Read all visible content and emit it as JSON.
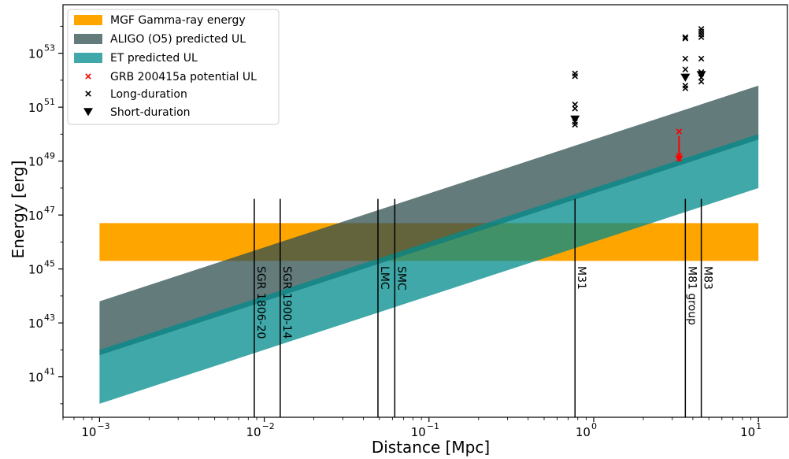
{
  "chart_data": {
    "type": "area",
    "title": "",
    "xlabel": "Distance [Mpc]",
    "ylabel": "Energy [erg]",
    "xscale": "log",
    "yscale": "log",
    "xlim": [
      0.0006,
      15
    ],
    "ylim_log10": [
      39.5,
      54.8
    ],
    "xticks": [
      {
        "value": 0.001,
        "base": "10",
        "exp": "−3"
      },
      {
        "value": 0.01,
        "base": "10",
        "exp": "−2"
      },
      {
        "value": 0.1,
        "base": "10",
        "exp": "−1"
      },
      {
        "value": 1,
        "base": "10",
        "exp": "0"
      },
      {
        "value": 10,
        "base": "10",
        "exp": "1"
      }
    ],
    "yticks": [
      {
        "log10": 41,
        "base": "10",
        "exp": "41"
      },
      {
        "log10": 43,
        "base": "10",
        "exp": "43"
      },
      {
        "log10": 45,
        "base": "10",
        "exp": "45"
      },
      {
        "log10": 47,
        "base": "10",
        "exp": "47"
      },
      {
        "log10": 49,
        "base": "10",
        "exp": "49"
      },
      {
        "log10": 51,
        "base": "10",
        "exp": "51"
      },
      {
        "log10": 53,
        "base": "10",
        "exp": "53"
      }
    ],
    "legend_position": "top-left",
    "bands": [
      {
        "name": "MGF Gamma-ray energy",
        "color": "#ffa500",
        "opacity": 1.0,
        "x": [
          0.001,
          10
        ],
        "lower_log10": [
          45.3,
          45.3
        ],
        "upper_log10": [
          46.7,
          46.7
        ]
      },
      {
        "name": "ALIGO (O5) predicted UL",
        "color": "#2f4f4f",
        "opacity": 0.75,
        "x": [
          0.001,
          10
        ],
        "lower_log10": [
          41.8,
          49.8
        ],
        "upper_log10": [
          43.8,
          51.8
        ]
      },
      {
        "name": "ET predicted UL",
        "color": "#008b8b",
        "opacity": 0.75,
        "x": [
          0.001,
          10
        ],
        "lower_log10": [
          40.0,
          48.0
        ],
        "upper_log10": [
          42.0,
          50.0
        ]
      }
    ],
    "galaxies": [
      {
        "name": "SGR 1806-20",
        "distance": 0.0087
      },
      {
        "name": "SGR 1900-14",
        "distance": 0.0125
      },
      {
        "name": "LMC",
        "distance": 0.049
      },
      {
        "name": "SMC",
        "distance": 0.062
      },
      {
        "name": "M31",
        "distance": 0.77
      },
      {
        "name": "M81 group",
        "distance": 3.6
      },
      {
        "name": "M83",
        "distance": 4.5
      }
    ],
    "galaxy_line_range_log10": [
      39.5,
      47.6
    ],
    "series": [
      {
        "name": "GRB 200415a potential UL",
        "marker": "x",
        "color": "#ff0000",
        "points": [
          {
            "x": 3.3,
            "y_log10": 50.1
          },
          {
            "x": 3.3,
            "y_log10": 49.2
          },
          {
            "x": 3.3,
            "y_log10": 49.1
          }
        ]
      },
      {
        "name": "Long-duration",
        "marker": "x",
        "color": "#000000",
        "points": [
          {
            "x": 0.77,
            "y_log10": 52.25
          },
          {
            "x": 0.77,
            "y_log10": 52.15
          },
          {
            "x": 0.77,
            "y_log10": 51.1
          },
          {
            "x": 0.77,
            "y_log10": 50.95
          },
          {
            "x": 0.77,
            "y_log10": 50.45
          },
          {
            "x": 0.77,
            "y_log10": 50.35
          },
          {
            "x": 3.6,
            "y_log10": 53.6
          },
          {
            "x": 3.6,
            "y_log10": 53.55
          },
          {
            "x": 3.6,
            "y_log10": 52.8
          },
          {
            "x": 3.6,
            "y_log10": 52.4
          },
          {
            "x": 3.6,
            "y_log10": 51.8
          },
          {
            "x": 3.6,
            "y_log10": 51.7
          },
          {
            "x": 4.5,
            "y_log10": 53.9
          },
          {
            "x": 4.5,
            "y_log10": 53.8
          },
          {
            "x": 4.5,
            "y_log10": 53.7
          },
          {
            "x": 4.5,
            "y_log10": 53.6
          },
          {
            "x": 4.5,
            "y_log10": 52.8
          },
          {
            "x": 4.5,
            "y_log10": 52.3
          },
          {
            "x": 4.5,
            "y_log10": 52.1
          },
          {
            "x": 4.5,
            "y_log10": 51.95
          }
        ]
      },
      {
        "name": "Short-duration",
        "marker": "v",
        "color": "#000000",
        "points": [
          {
            "x": 0.77,
            "y_log10": 50.55
          },
          {
            "x": 3.6,
            "y_log10": 52.1
          },
          {
            "x": 4.5,
            "y_log10": 52.2
          }
        ]
      }
    ]
  }
}
